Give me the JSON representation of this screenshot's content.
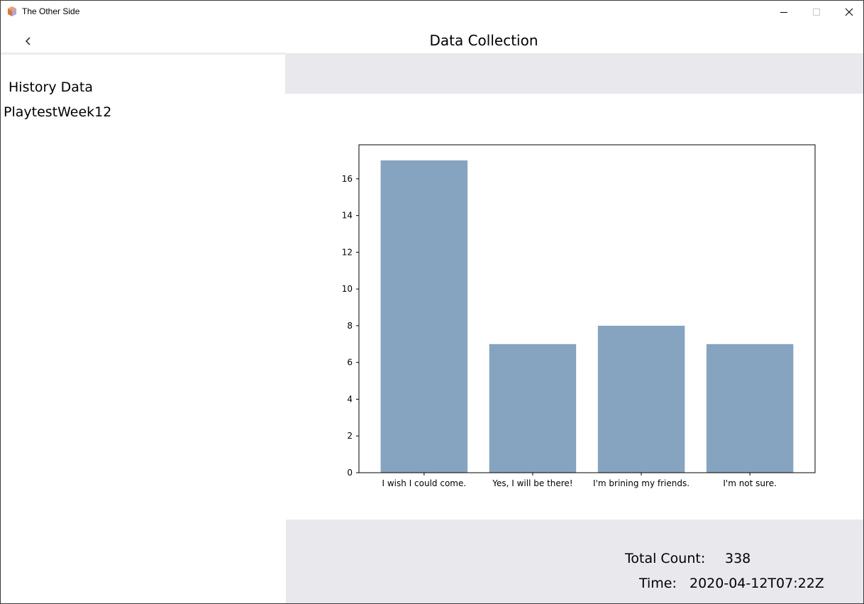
{
  "window": {
    "title": "The Other Side",
    "controls": {
      "minimize": "minimize-icon",
      "maximize": "maximize-icon",
      "close": "close-icon"
    }
  },
  "header": {
    "title": "Data Collection",
    "back_icon": "chevron-left-icon"
  },
  "sidebar": {
    "heading": "History Data",
    "items": [
      {
        "label": "PlaytestWeek12"
      }
    ]
  },
  "stats": {
    "total_label": "Total Count:",
    "total_value": "338",
    "time_label": "Time:",
    "time_value": "2020-04-12T07:22Z"
  },
  "colors": {
    "bar": "#86a3c0",
    "band": "#e9e9ed"
  },
  "chart_data": {
    "type": "bar",
    "categories": [
      "I wish I could come.",
      "Yes, I will be there!",
      "I'm brining my friends.",
      "I'm not sure."
    ],
    "values": [
      17,
      7,
      8,
      7
    ],
    "yticks": [
      0,
      2,
      4,
      6,
      8,
      10,
      12,
      14,
      16
    ],
    "ylim": [
      0,
      17.85
    ],
    "title": "",
    "xlabel": "",
    "ylabel": "",
    "grid": false
  }
}
